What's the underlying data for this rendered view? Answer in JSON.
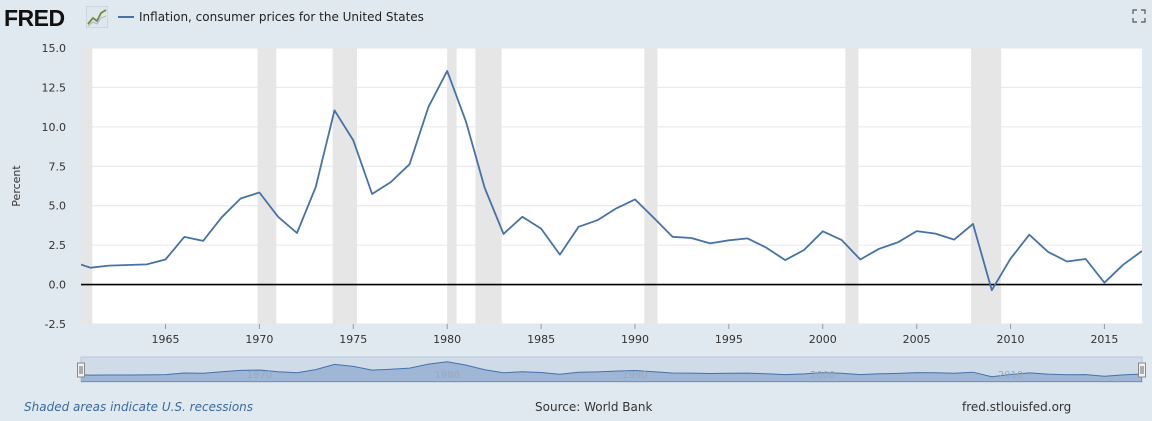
{
  "header": {
    "logo_text": "FRED",
    "logo_icon": "fred-chart-icon",
    "legend_label": "Inflation, consumer prices for the United States",
    "fullscreen_icon": "fullscreen-icon"
  },
  "footer": {
    "recessions_note": "Shaded areas indicate U.S. recessions",
    "source": "Source: World Bank",
    "site": "fred.stlouisfed.org"
  },
  "colors": {
    "line": "#4572a7",
    "recession": "#e6e6e6",
    "zero_line": "#000000",
    "navigator_fill": "#9fb6d7"
  },
  "chart_data": {
    "type": "line",
    "title": "",
    "ylabel": "Percent",
    "xlabel": "",
    "xlim": [
      1960.5,
      2017
    ],
    "ylim": [
      -2.5,
      15.0
    ],
    "y_ticks": [
      "-2.5",
      "0.0",
      "2.5",
      "5.0",
      "7.5",
      "10.0",
      "12.5",
      "15.0"
    ],
    "x_ticks": [
      "1965",
      "1970",
      "1975",
      "1980",
      "1985",
      "1990",
      "1995",
      "2000",
      "2005",
      "2010",
      "2015"
    ],
    "navigator_ticks": [
      "1970",
      "1980",
      "1990",
      "2000",
      "2010"
    ],
    "grid": true,
    "series": [
      {
        "name": "Inflation, consumer prices for the United States",
        "x": [
          1960,
          1961,
          1962,
          1963,
          1964,
          1965,
          1966,
          1967,
          1968,
          1969,
          1970,
          1971,
          1972,
          1973,
          1974,
          1975,
          1976,
          1977,
          1978,
          1979,
          1980,
          1981,
          1982,
          1983,
          1984,
          1985,
          1986,
          1987,
          1988,
          1989,
          1990,
          1991,
          1992,
          1993,
          1994,
          1995,
          1996,
          1997,
          1998,
          1999,
          2000,
          2001,
          2002,
          2003,
          2004,
          2005,
          2006,
          2007,
          2008,
          2009,
          2010,
          2011,
          2012,
          2013,
          2014,
          2015,
          2016,
          2017
        ],
        "y": [
          1.46,
          1.07,
          1.2,
          1.24,
          1.28,
          1.59,
          3.02,
          2.77,
          4.27,
          5.46,
          5.84,
          4.29,
          3.27,
          6.18,
          11.05,
          9.14,
          5.74,
          6.5,
          7.63,
          11.25,
          13.55,
          10.33,
          6.13,
          3.21,
          4.3,
          3.55,
          1.9,
          3.66,
          4.08,
          4.83,
          5.4,
          4.23,
          3.03,
          2.95,
          2.61,
          2.81,
          2.93,
          2.34,
          1.55,
          2.19,
          3.38,
          2.83,
          1.59,
          2.27,
          2.68,
          3.39,
          3.23,
          2.85,
          3.84,
          -0.36,
          1.64,
          3.16,
          2.07,
          1.46,
          1.62,
          0.12,
          1.26,
          2.13
        ]
      }
    ],
    "recessions": [
      [
        1960.3,
        1961.1
      ],
      [
        1969.9,
        1970.9
      ],
      [
        1973.9,
        1975.2
      ],
      [
        1980.0,
        1980.5
      ],
      [
        1981.5,
        1982.9
      ],
      [
        1990.5,
        1991.2
      ],
      [
        2001.2,
        2001.9
      ],
      [
        2007.9,
        2009.5
      ]
    ]
  }
}
